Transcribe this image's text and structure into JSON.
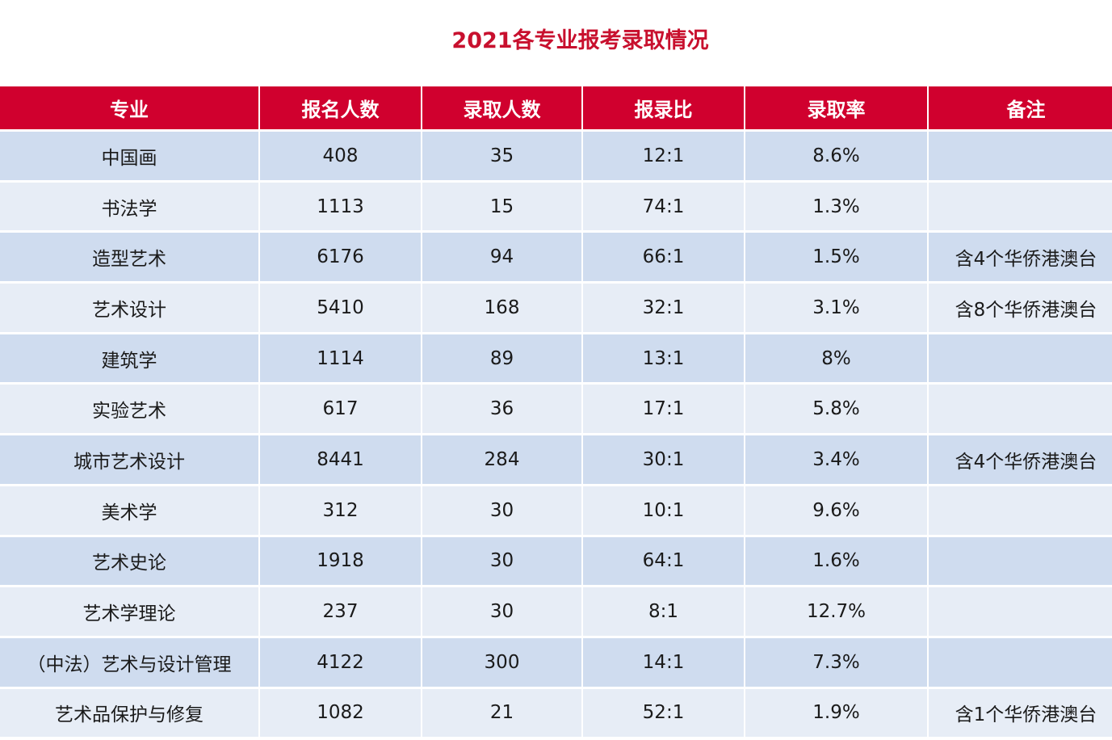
{
  "title": "2021各专业报考录取情况",
  "colors": {
    "header": "#d0002e",
    "title": "#c8102e",
    "row_odd": "#cfdcef",
    "row_even": "#e7edf6"
  },
  "headers": [
    "专业",
    "报名人数",
    "录取人数",
    "报录比",
    "录取率",
    "备注"
  ],
  "rows": [
    [
      "中国画",
      "408",
      "35",
      "12:1",
      "8.6%",
      ""
    ],
    [
      "书法学",
      "1113",
      "15",
      "74:1",
      "1.3%",
      ""
    ],
    [
      "造型艺术",
      "6176",
      "94",
      "66:1",
      "1.5%",
      "含4个华侨港澳台"
    ],
    [
      "艺术设计",
      "5410",
      "168",
      "32:1",
      "3.1%",
      "含8个华侨港澳台"
    ],
    [
      "建筑学",
      "1114",
      "89",
      "13:1",
      "8%",
      ""
    ],
    [
      "实验艺术",
      "617",
      "36",
      "17:1",
      "5.8%",
      ""
    ],
    [
      "城市艺术设计",
      "8441",
      "284",
      "30:1",
      "3.4%",
      "含4个华侨港澳台"
    ],
    [
      "美术学",
      "312",
      "30",
      "10:1",
      "9.6%",
      ""
    ],
    [
      "艺术史论",
      "1918",
      "30",
      "64:1",
      "1.6%",
      ""
    ],
    [
      "艺术学理论",
      "237",
      "30",
      "8:1",
      "12.7%",
      ""
    ],
    [
      "（中法）艺术与设计管理",
      "4122",
      "300",
      "14:1",
      "7.3%",
      ""
    ],
    [
      "艺术品保护与修复",
      "1082",
      "21",
      "52:1",
      "1.9%",
      "含1个华侨港澳台"
    ]
  ]
}
